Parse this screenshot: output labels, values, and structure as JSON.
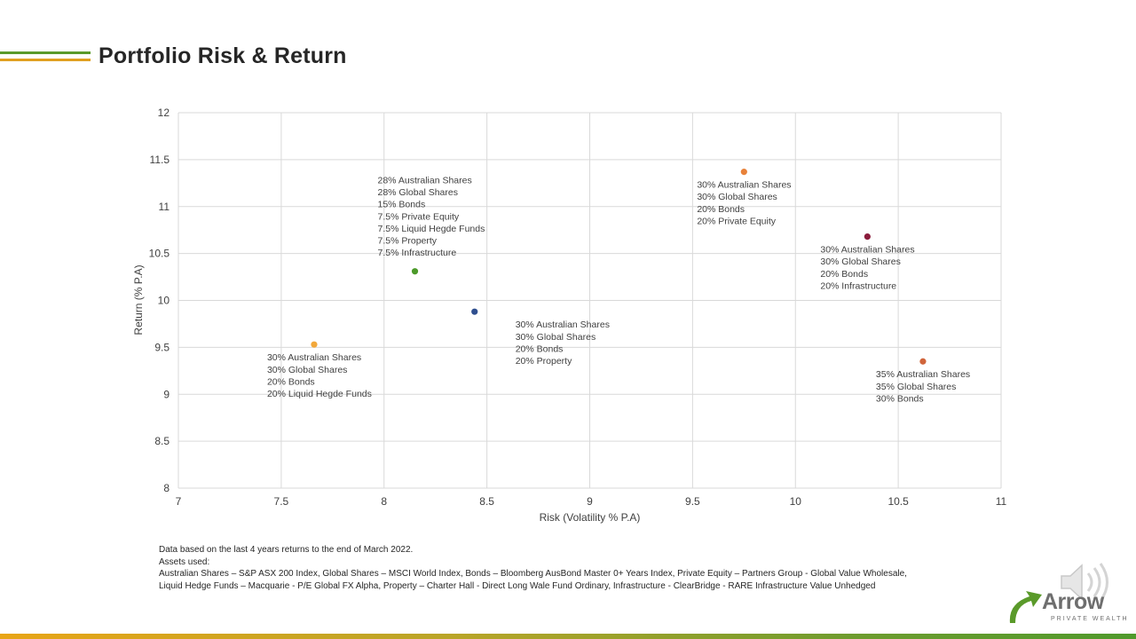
{
  "slide": {
    "title": "Portfolio Risk & Return"
  },
  "chart_data": {
    "type": "scatter",
    "title": "",
    "xlabel": "Risk (Volatility % P.A)",
    "ylabel": "Return (% P.A)",
    "xlim": [
      7,
      11
    ],
    "ylim": [
      8,
      12
    ],
    "xticks": [
      7,
      7.5,
      8,
      8.5,
      9,
      9.5,
      10,
      10.5,
      11
    ],
    "yticks": [
      8,
      8.5,
      9,
      9.5,
      10,
      10.5,
      11,
      11.5,
      12
    ],
    "xtick_labels": [
      "7",
      "7.5",
      "8",
      "8.5",
      "9",
      "9.5",
      "10",
      "10.5",
      "11"
    ],
    "ytick_labels": [
      "8",
      "8.5",
      "9",
      "9.5",
      "10",
      "10.5",
      "11",
      "11.5",
      "12"
    ],
    "grid": true,
    "points": [
      {
        "x": 7.66,
        "y": 9.53,
        "color": "#f2a83b",
        "label_pos": "below-left",
        "label": [
          "30% Australian Shares",
          "30% Global Shares",
          "20% Bonds",
          "20% Liquid Hegde Funds"
        ]
      },
      {
        "x": 8.15,
        "y": 10.31,
        "color": "#4c9a2a",
        "label_pos": "above-left",
        "label": [
          "28% Australian Shares",
          "28% Global Shares",
          "15% Bonds",
          "7.5% Private Equity",
          "7.5% Liquid Hegde Funds",
          "7.5% Property",
          "7.5% Infrastructure"
        ]
      },
      {
        "x": 8.44,
        "y": 9.88,
        "color": "#2f4f8f",
        "label_pos": "below",
        "label": [
          "30% Australian Shares",
          "30% Global Shares",
          "20% Bonds",
          "20% Property"
        ]
      },
      {
        "x": 9.75,
        "y": 11.37,
        "color": "#e8823a",
        "label_pos": "below-left",
        "label": [
          "30% Australian Shares",
          "30% Global Shares",
          "20% Bonds",
          "20% Private Equity"
        ]
      },
      {
        "x": 10.35,
        "y": 10.68,
        "color": "#8b1c3c",
        "label_pos": "below-left",
        "label": [
          "30% Australian Shares",
          "30% Global Shares",
          "20% Bonds",
          "20% Infrastructure"
        ]
      },
      {
        "x": 10.62,
        "y": 9.35,
        "color": "#d0643a",
        "label_pos": "below-left",
        "label": [
          "35% Australian Shares",
          "35% Global Shares",
          "30% Bonds"
        ]
      }
    ]
  },
  "footnote": {
    "line1": "Data based on the last 4 years returns to the end of March 2022.",
    "line2": "Assets used:",
    "line3": "Australian Shares – S&P ASX 200 Index, Global Shares – MSCI World Index, Bonds – Bloomberg AusBond Master 0+ Years Index, Private Equity – Partners Group - Global Value Wholesale,",
    "line4": "Liquid Hedge Funds – Macquarie - P/E Global FX Alpha, Property – Charter Hall - Direct Long Wale Fund Ordinary, Infrastructure - ClearBridge - RARE Infrastructure Value Unhedged"
  },
  "logo": {
    "word": "Arrow",
    "tagline": "PRIVATE WEALTH"
  },
  "icons": {
    "speaker": "speaker-icon",
    "logo_mark": "arrow-logo-icon"
  },
  "colors": {
    "accent_green": "#5a9a2a",
    "accent_orange": "#e0a020",
    "gridline": "#d9d9d9"
  }
}
